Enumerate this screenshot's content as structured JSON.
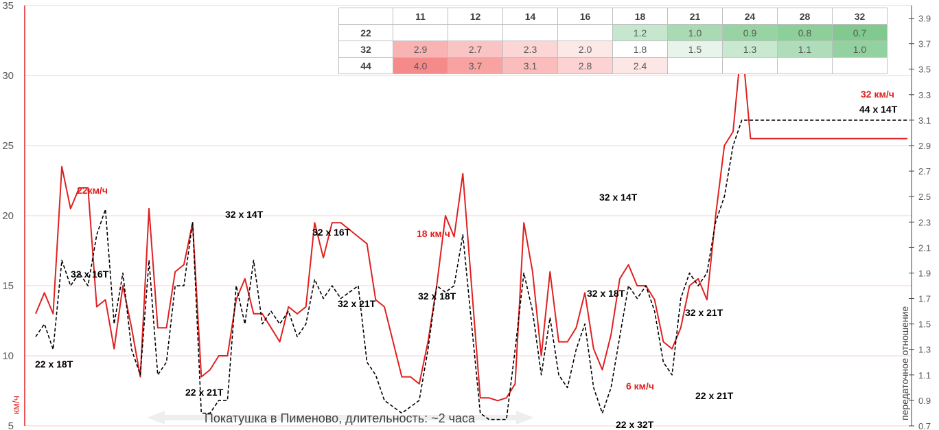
{
  "chart_data": {
    "type": "line",
    "note": "Покатушка в Пименово, длительность: ~2 часа",
    "y_left": {
      "label": "км/ч",
      "ylim": [
        5,
        35
      ],
      "ticks": [
        "5",
        "10",
        "15",
        "20",
        "25",
        "30",
        "35"
      ]
    },
    "y_right": {
      "label": "передаточное отношение",
      "ylim": [
        0.7,
        4.0
      ],
      "ticks": [
        "0.7",
        "0.9",
        "1.1",
        "1.3",
        "1.5",
        "1.7",
        "1.9",
        "2.1",
        "2.3",
        "2.5",
        "2.7",
        "2.9",
        "3.1",
        "3.3",
        "3.5",
        "3.7",
        "3.9"
      ]
    },
    "x_range": [
      0,
      100
    ],
    "grid": "horizontal",
    "series": [
      {
        "color": "#e02020",
        "style": "solid",
        "axis": "left",
        "x": [
          0,
          1,
          2,
          3,
          4,
          5,
          6,
          7,
          8,
          9,
          10,
          11,
          12,
          13,
          14,
          15,
          16,
          17,
          18,
          19,
          20,
          21,
          22,
          23,
          24,
          25,
          26,
          27,
          28,
          29,
          30,
          31,
          32,
          33,
          34,
          35,
          36,
          37,
          38,
          39,
          40,
          41,
          42,
          43,
          44,
          45,
          46,
          47,
          48,
          49,
          50,
          51,
          52,
          53,
          54,
          55,
          56,
          57,
          58,
          59,
          60,
          61,
          62,
          63,
          64,
          65,
          66,
          67,
          68,
          69,
          70,
          71,
          72,
          73,
          74,
          75,
          76,
          77,
          78,
          79,
          80,
          81,
          82,
          83,
          84,
          85,
          86,
          87,
          88,
          89,
          90,
          91,
          92,
          93,
          94,
          95,
          96,
          97,
          98,
          99,
          100
        ],
        "y": [
          13,
          14.5,
          13,
          23.5,
          20.5,
          22,
          22,
          13.5,
          14,
          10.5,
          15,
          12,
          8.5,
          20.5,
          12,
          12,
          16,
          16.5,
          19.5,
          8.5,
          9,
          10,
          10,
          14,
          15.5,
          13,
          13,
          12,
          11,
          13.5,
          13,
          13.5,
          19.5,
          17,
          19.5,
          19.5,
          19,
          18.5,
          18,
          14,
          13.5,
          11,
          8.5,
          8.5,
          8,
          11,
          15,
          20,
          18.5,
          23,
          15,
          7,
          7,
          6.8,
          7,
          8,
          19.5,
          16,
          10,
          16,
          11,
          11,
          12,
          14.5,
          10.5,
          9,
          11.5,
          15.5,
          16.5,
          15,
          15,
          14,
          11,
          10.5,
          12,
          15,
          15.5,
          14,
          20,
          25,
          26,
          32.5,
          25.5,
          25.5,
          25.5,
          25.5,
          25.5,
          25.5,
          25.5,
          25.5,
          25.5,
          25.5,
          25.5,
          25.5,
          25.5,
          25.5,
          25.5,
          25.5,
          25.5,
          25.5,
          25.5
        ]
      },
      {
        "color": "#000000",
        "style": "dashed",
        "axis": "right",
        "x": [
          0,
          1,
          2,
          3,
          4,
          5,
          6,
          7,
          8,
          9,
          10,
          11,
          12,
          13,
          14,
          15,
          16,
          17,
          18,
          19,
          20,
          21,
          22,
          23,
          24,
          25,
          26,
          27,
          28,
          29,
          30,
          31,
          32,
          33,
          34,
          35,
          36,
          37,
          38,
          39,
          40,
          41,
          42,
          43,
          44,
          45,
          46,
          47,
          48,
          49,
          50,
          51,
          52,
          53,
          54,
          55,
          56,
          57,
          58,
          59,
          60,
          61,
          62,
          63,
          64,
          65,
          66,
          67,
          68,
          69,
          70,
          71,
          72,
          73,
          74,
          75,
          76,
          77,
          78,
          79,
          80,
          81,
          82,
          83,
          84,
          85,
          86,
          87,
          88,
          89,
          90,
          91,
          92,
          93,
          94,
          95,
          96,
          97,
          98,
          99,
          100
        ],
        "y": [
          1.4,
          1.5,
          1.3,
          2.0,
          1.8,
          1.9,
          1.8,
          2.2,
          2.4,
          1.5,
          1.9,
          1.3,
          1.1,
          2.0,
          1.1,
          1.2,
          1.8,
          1.8,
          2.3,
          0.8,
          0.8,
          0.9,
          0.9,
          1.8,
          1.5,
          2.0,
          1.5,
          1.6,
          1.5,
          1.6,
          1.4,
          1.5,
          1.85,
          1.7,
          1.8,
          1.7,
          1.75,
          1.8,
          1.2,
          1.1,
          0.9,
          0.85,
          0.8,
          0.85,
          0.9,
          1.3,
          1.8,
          1.75,
          1.8,
          2.2,
          1.5,
          0.8,
          0.75,
          0.75,
          0.75,
          1.3,
          1.9,
          1.6,
          1.1,
          1.55,
          1.1,
          1.0,
          1.3,
          1.5,
          1.0,
          0.8,
          1.0,
          1.4,
          1.8,
          1.7,
          1.8,
          1.6,
          1.2,
          1.1,
          1.7,
          1.9,
          1.8,
          1.9,
          2.3,
          2.5,
          2.9,
          3.1,
          3.1,
          3.1,
          3.1,
          3.1,
          3.1,
          3.1,
          3.1,
          3.1,
          3.1,
          3.1,
          3.1,
          3.1,
          3.1,
          3.1,
          3.1,
          3.1,
          3.1,
          3.1,
          3.1
        ]
      }
    ],
    "annotations": [
      {
        "text": "22км/ч",
        "color": "#e02020"
      },
      {
        "text": "18 км/ч",
        "color": "#e02020"
      },
      {
        "text": "6 км/ч",
        "color": "#e02020"
      },
      {
        "text": "32 км/ч",
        "color": "#e02020"
      },
      {
        "text": "22 x 18T",
        "color": "#000000"
      },
      {
        "text": "32 x 16T",
        "color": "#000000"
      },
      {
        "text": "22 x 21T",
        "color": "#000000"
      },
      {
        "text": "32 x 14T",
        "color": "#000000"
      },
      {
        "text": "32 x 16T",
        "color": "#000000"
      },
      {
        "text": "32 x 21T",
        "color": "#000000"
      },
      {
        "text": "32 x 18T",
        "color": "#000000"
      },
      {
        "text": "32 x 14T",
        "color": "#000000"
      },
      {
        "text": "32 x 18T",
        "color": "#000000"
      },
      {
        "text": "22 x 32T",
        "color": "#000000"
      },
      {
        "text": "32 x 21T",
        "color": "#000000"
      },
      {
        "text": "22 x 21T",
        "color": "#000000"
      },
      {
        "text": "44 x 14T",
        "color": "#000000"
      }
    ],
    "gear_table": {
      "columns": [
        "11",
        "12",
        "14",
        "16",
        "18",
        "21",
        "24",
        "28",
        "32"
      ],
      "rows": [
        {
          "chainring": "22",
          "values": [
            "",
            "",
            "",
            "",
            "1.2",
            "1.0",
            "0.9",
            "0.8",
            "0.7"
          ],
          "colors": [
            "#ffffff",
            "#ffffff",
            "#ffffff",
            "#ffffff",
            "#c6e6cd",
            "#a9dab3",
            "#97d3a3",
            "#8ccf99",
            "#80c98f"
          ]
        },
        {
          "chainring": "32",
          "values": [
            "2.9",
            "2.7",
            "2.3",
            "2.0",
            "1.8",
            "1.5",
            "1.3",
            "1.1",
            "1.0"
          ],
          "colors": [
            "#f9b3b3",
            "#fbc4c4",
            "#fcd5d5",
            "#fde8e8",
            "#ffffff",
            "#e8f4ea",
            "#c9e8d0",
            "#b0ddb9",
            "#94d1a0"
          ]
        },
        {
          "chainring": "44",
          "values": [
            "4.0",
            "3.7",
            "3.1",
            "2.8",
            "2.4",
            "",
            "",
            "",
            ""
          ],
          "colors": [
            "#f58a8a",
            "#f8a2a2",
            "#fbbcbc",
            "#fcd2d2",
            "#fde6e6",
            "#ffffff",
            "#ffffff",
            "#ffffff",
            "#ffffff"
          ]
        }
      ]
    }
  }
}
